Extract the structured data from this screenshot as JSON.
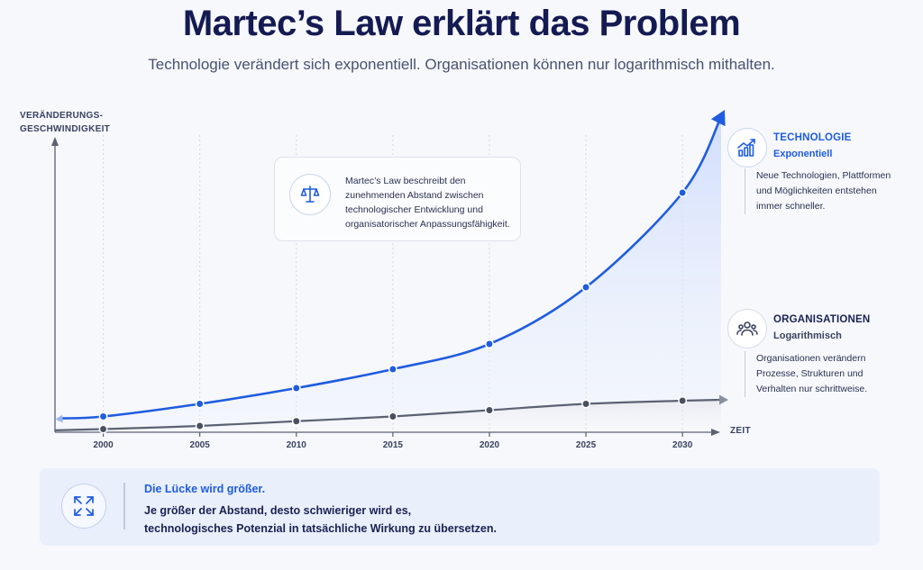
{
  "title": "Martec’s Law erklärt das Problem",
  "subtitle": "Technologie verändert sich exponentiell. Organisationen können nur logarithmisch mithalten.",
  "colors": {
    "technology": "#1f5ce0",
    "organizations": "#5c6172",
    "title": "#141a52"
  },
  "chart_data": {
    "type": "line",
    "ylabel": "VERÄNDERUNGS-\nGESCHWINDIGKEIT",
    "xlabel": "ZEIT",
    "x": [
      2000,
      2005,
      2010,
      2015,
      2020,
      2025,
      2030
    ],
    "xlim": [
      1997.5,
      2032
    ],
    "ylim": [
      0,
      100
    ],
    "grid": "vertical-dotted",
    "series": [
      {
        "name": "TECHNOLOGIE",
        "values": [
          5,
          9,
          14,
          20,
          28,
          46,
          76
        ]
      },
      {
        "name": "ORGANISATIONEN",
        "values": [
          1,
          2,
          3.5,
          5,
          7,
          9,
          10
        ]
      }
    ]
  },
  "info_box": {
    "icon": "scale-icon",
    "text": "Martec’s Law beschreibt den zunehmenden Abstand zwischen technologischer Entwicklung und organisatorischer Anpassungsfähigkeit."
  },
  "legend": {
    "technology": {
      "icon": "trending-up-icon",
      "title": "TECHNOLOGIE",
      "subtitle": "Exponentiell",
      "description": "Neue Technologien, Plattformen und Möglichkeiten entstehen immer schneller."
    },
    "organizations": {
      "icon": "people-icon",
      "title": "ORGANISATIONEN",
      "subtitle": "Logarithmisch",
      "description": "Organisationen verändern Prozesse, Strukturen und Verhalten nur schrittweise."
    }
  },
  "callout": {
    "icon": "expand-arrows-icon",
    "title": "Die Lücke wird größer.",
    "line1": "Je größer der Abstand, desto schwieriger wird es,",
    "line2": "technologisches Potenzial in tatsächliche Wirkung zu übersetzen."
  }
}
